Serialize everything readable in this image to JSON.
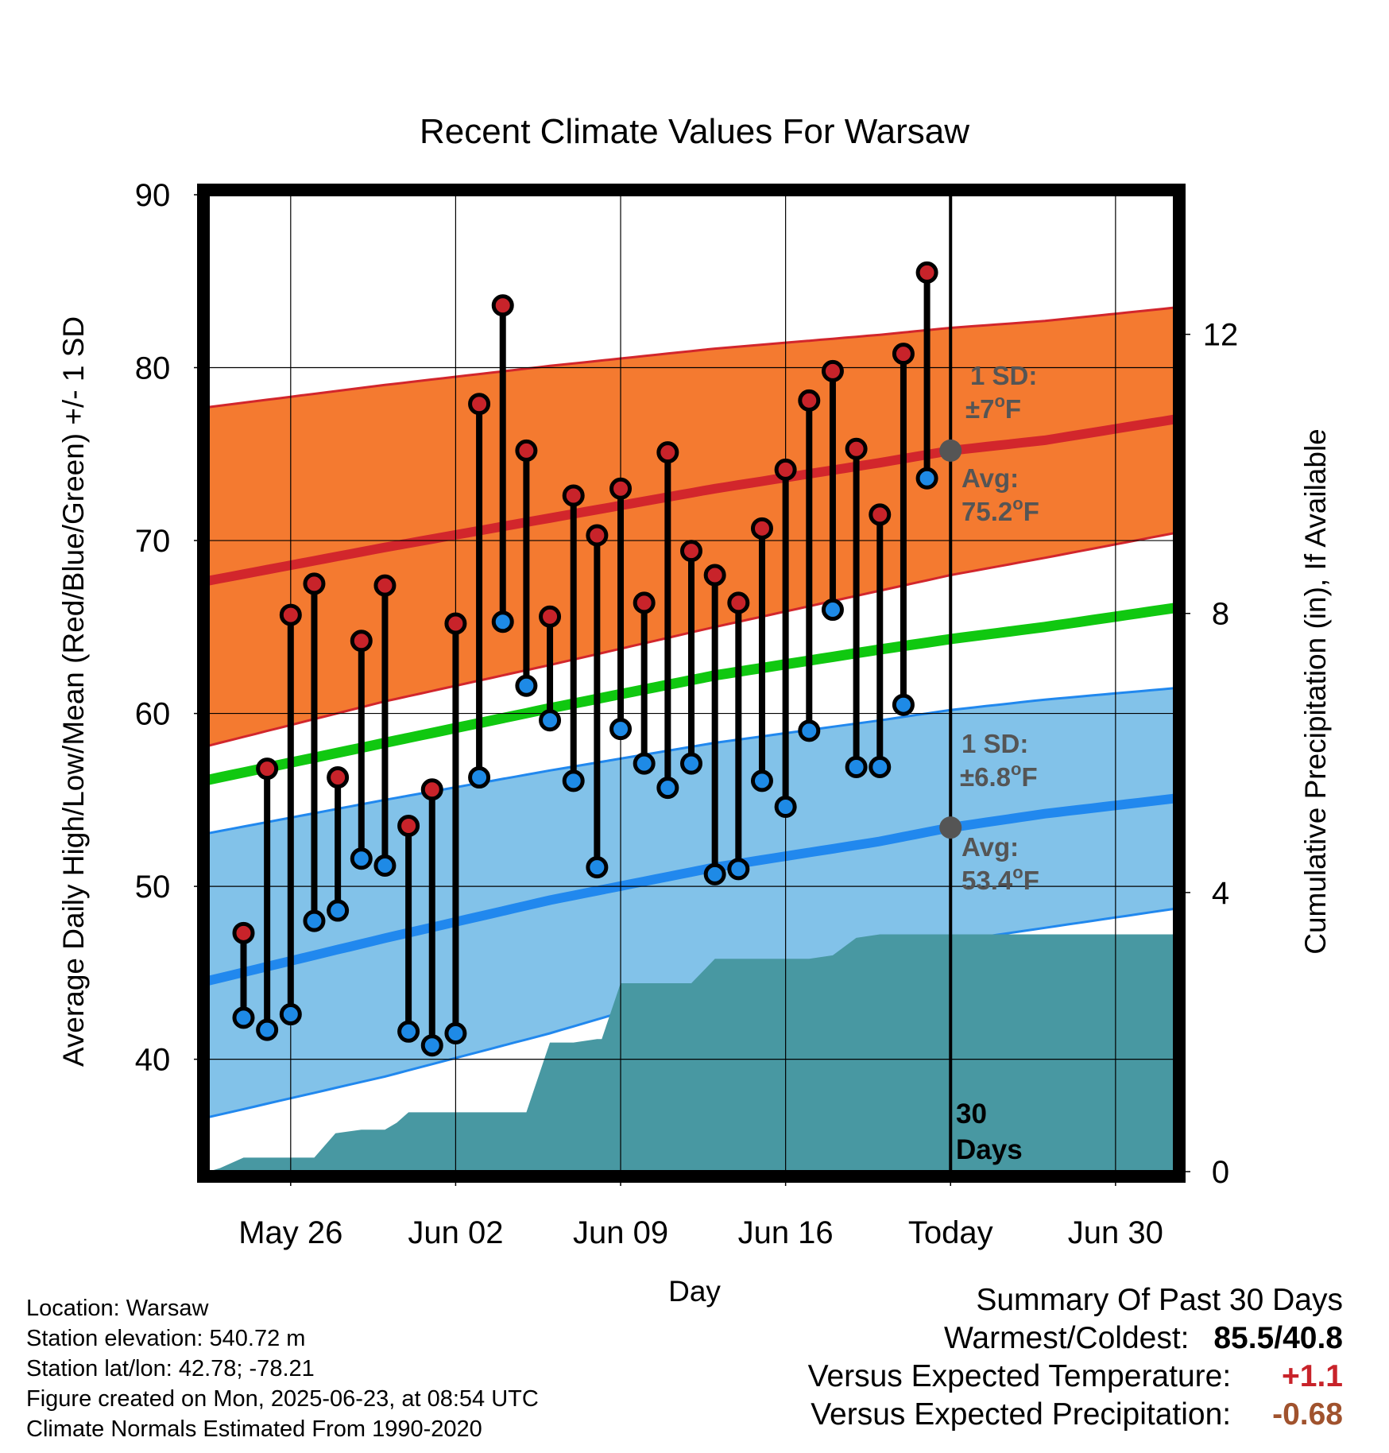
{
  "chart_data": {
    "type": "line",
    "title": "Recent Climate Values For Warsaw",
    "xlabel": "Day",
    "ylabel": "Average Daily High/Low/Mean (Red/Blue/Green) +/- 1 SD",
    "y2label": "Cumulative Precipitation (in), If Available",
    "ylim": [
      33.5,
      90
    ],
    "y2lim": [
      0,
      14
    ],
    "x_ticks": [
      "May 26",
      "Jun 02",
      "Jun 09",
      "Jun 16",
      "Today",
      "Jun 30"
    ],
    "y_ticks": [
      40,
      50,
      60,
      70,
      80,
      90
    ],
    "y2_ticks": [
      0,
      4,
      8,
      12
    ],
    "grid": true,
    "x_range_days": [
      -31.5,
      9.5
    ],
    "normals": {
      "day": [
        -31,
        -24,
        -17,
        -10,
        -3,
        0,
        4,
        9
      ],
      "high_mean": [
        67.8,
        69.6,
        71.3,
        73.0,
        74.5,
        75.2,
        75.8,
        76.9
      ],
      "high_plus_sd": [
        77.8,
        79.0,
        80.1,
        81.1,
        81.9,
        82.3,
        82.7,
        83.4
      ],
      "high_minus_sd": [
        58.3,
        60.7,
        62.8,
        65.0,
        67.1,
        68.0,
        69.0,
        70.3
      ],
      "low_mean": [
        44.7,
        47.0,
        49.2,
        51.1,
        52.6,
        53.4,
        54.2,
        55.0
      ],
      "low_plus_sd": [
        53.2,
        55.0,
        56.7,
        58.3,
        59.6,
        60.2,
        60.8,
        61.4
      ],
      "low_minus_sd": [
        36.8,
        39.0,
        41.5,
        44.3,
        46.1,
        46.8,
        47.6,
        48.6
      ],
      "mean": [
        56.3,
        58.3,
        60.3,
        62.2,
        63.7,
        64.3,
        65.0,
        66.0
      ]
    },
    "series": [
      {
        "name": "High",
        "color": "#c8232a",
        "values": [
          47.3,
          56.8,
          65.7,
          67.5,
          56.3,
          64.2,
          67.4,
          53.5,
          55.6,
          65.2,
          77.9,
          83.6,
          75.2,
          65.6,
          72.6,
          70.3,
          73.0,
          66.4,
          75.1,
          69.4,
          68.0,
          66.4,
          70.7,
          74.1,
          78.1,
          79.8,
          75.3,
          71.5,
          80.8,
          85.5
        ]
      },
      {
        "name": "Low",
        "color": "#1e8ae6",
        "values": [
          42.4,
          41.7,
          42.6,
          48.0,
          48.6,
          51.6,
          51.2,
          41.6,
          40.8,
          41.5,
          56.3,
          65.3,
          61.6,
          59.6,
          56.1,
          51.1,
          59.1,
          57.1,
          55.7,
          57.1,
          50.7,
          51.0,
          56.1,
          54.6,
          59.0,
          66.0,
          56.9,
          56.9,
          60.5,
          73.6
        ]
      }
    ],
    "days": [
      -30,
      -29,
      -28,
      -27,
      -26,
      -25,
      -24,
      -23,
      -22,
      -21,
      -20,
      -19,
      -18,
      -17,
      -16,
      -15,
      -14,
      -13,
      -12,
      -11,
      -10,
      -9,
      -8,
      -7,
      -6,
      -5,
      -4,
      -3,
      -2,
      -1
    ],
    "precipitation": {
      "day": [
        -31.5,
        -31,
        -30,
        -27,
        -26.1,
        -25,
        -24,
        -23.5,
        -23,
        -19,
        -18,
        -17,
        -16.5,
        -16,
        -15,
        -14.8,
        -14,
        -12,
        -11,
        -10,
        -9,
        -6,
        -5,
        -4,
        -3,
        0,
        9.5
      ],
      "cumulative": [
        0,
        0.05,
        0.2,
        0.2,
        0.55,
        0.6,
        0.6,
        0.7,
        0.85,
        0.85,
        0.85,
        1.85,
        1.85,
        1.85,
        1.9,
        1.9,
        2.7,
        2.7,
        2.7,
        3.05,
        3.05,
        3.05,
        3.1,
        3.35,
        3.4,
        3.4,
        3.4
      ]
    },
    "annotations": {
      "high_sd_label": "1 SD:",
      "high_sd_value": "±7",
      "low_sd_label": "1 SD:",
      "low_sd_value": "±6.8",
      "high_avg_label": "Avg:",
      "high_avg_value": "75.2",
      "low_avg_label": "Avg:",
      "low_avg_value": "53.4",
      "degree_unit": "o",
      "f_unit": "F",
      "days_number": "30",
      "days_word": "Days"
    }
  },
  "info": {
    "location": "Location: Warsaw",
    "elevation": "Station elevation: 540.72 m",
    "latlon": "Station lat/lon: 42.78; -78.21",
    "created": "Figure created on Mon, 2025-06-23, at 08:54 UTC",
    "normals": "Climate Normals Estimated From 1990-2020"
  },
  "summary": {
    "title": "Summary Of Past 30 Days",
    "warm_cold_label": "Warmest/Coldest:",
    "warm_value": "85.5",
    "slash": "/",
    "cold_value": "40.8",
    "temp_label": "Versus Expected Temperature:",
    "temp_value": "+1.1",
    "temp_color": "#c8232a",
    "precip_label": "Versus Expected Precipitation:",
    "precip_value": "-0.68",
    "precip_color": "#a0522d"
  },
  "colors": {
    "high_band": "#f47a30",
    "high_line": "#d2262c",
    "low_band": "#82c2e9",
    "low_line": "#2188ee",
    "mean_line": "#10c810",
    "precip_fill": "#4898a2",
    "avg_marker": "#555555"
  }
}
